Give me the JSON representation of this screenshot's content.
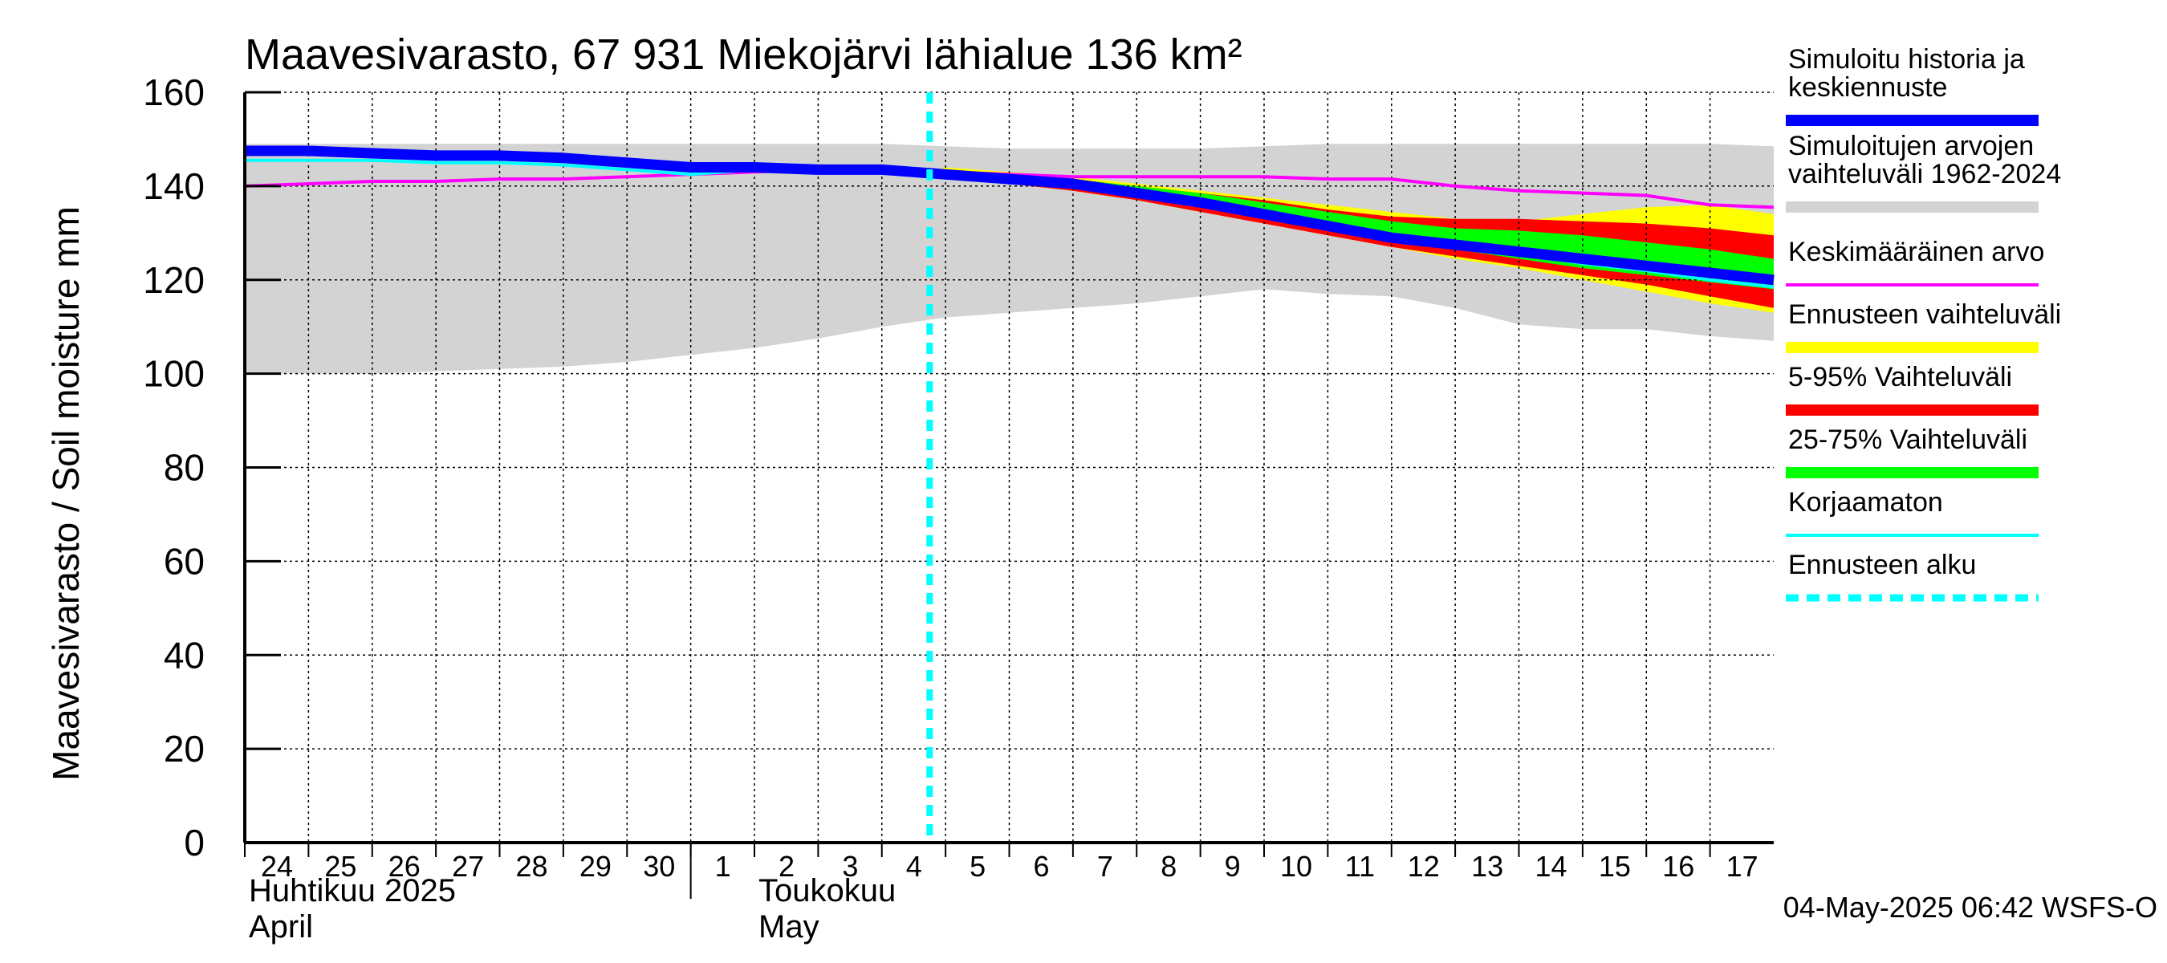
{
  "chart_data": {
    "type": "area",
    "title": "Maavesivarasto, 67 931 Miekojärvi lähialue 136 km²",
    "ylabel": "Maavesivarasto / Soil moisture   mm",
    "ylim": [
      0,
      160
    ],
    "yticks": [
      0,
      20,
      40,
      60,
      80,
      100,
      120,
      140,
      160
    ],
    "x_start_day": 24,
    "x_end_day": 48,
    "x_days": [
      24,
      25,
      26,
      27,
      28,
      29,
      30,
      31,
      32,
      33,
      34,
      35,
      36,
      37,
      38,
      39,
      40,
      41,
      42,
      43,
      44,
      45,
      46,
      47
    ],
    "day_labels": [
      "24",
      "25",
      "26",
      "27",
      "28",
      "29",
      "30",
      "1",
      "2",
      "3",
      "4",
      "5",
      "6",
      "7",
      "8",
      "9",
      "10",
      "11",
      "12",
      "13",
      "14",
      "15",
      "16",
      "17"
    ],
    "month_labels": [
      {
        "line1": "Huhtikuu  2025",
        "line2": "April",
        "day": 24
      },
      {
        "line1": "Toukokuu",
        "line2": "May",
        "day": 32
      }
    ],
    "month_separator_day": 31,
    "forecast_start_day": 34.75,
    "grid": true,
    "legend_position": "right",
    "legend": [
      {
        "label": "Simuloitu historia ja keskiennuste",
        "lines": [
          "Simuloitu historia ja",
          "keskiennuste"
        ],
        "color": "#0000ff",
        "style": "thick"
      },
      {
        "label": "Simuloitujen arvojen vaihteluväli 1962-2024",
        "lines": [
          "Simuloitujen arvojen",
          "vaihteluväli 1962-2024"
        ],
        "color": "#d3d3d3",
        "style": "thick"
      },
      {
        "label": "Keskimääräinen arvo",
        "lines": [
          "Keskimääräinen arvo"
        ],
        "color": "#ff00ff",
        "style": "thin"
      },
      {
        "label": "Ennusteen vaihteluväli",
        "lines": [
          "Ennusteen vaihteluväli"
        ],
        "color": "#ffff00",
        "style": "thick"
      },
      {
        "label": "5-95% Vaihteluväli",
        "lines": [
          "5-95% Vaihteluväli"
        ],
        "color": "#ff0000",
        "style": "thick"
      },
      {
        "label": "25-75% Vaihteluväli",
        "lines": [
          "25-75% Vaihteluväli"
        ],
        "color": "#00ff00",
        "style": "thick"
      },
      {
        "label": "Korjaamaton",
        "lines": [
          "Korjaamaton"
        ],
        "color": "#00ffff",
        "style": "thin"
      },
      {
        "label": "Ennusteen alku",
        "lines": [
          "Ennusteen alku"
        ],
        "color": "#00ffff",
        "style": "dashed"
      }
    ],
    "series": [
      {
        "name": "Simuloitujen arvojen vaihteluväli 1962-2024",
        "kind": "band",
        "color": "#d3d3d3",
        "x": [
          24,
          25,
          26,
          27,
          28,
          29,
          30,
          31,
          32,
          33,
          34,
          35,
          36,
          37,
          38,
          39,
          40,
          41,
          42,
          43,
          44,
          45,
          46,
          47,
          48
        ],
        "low": [
          100,
          100,
          100,
          100.5,
          101,
          101.5,
          102.5,
          104,
          105.5,
          107.5,
          110,
          112,
          113,
          114,
          115,
          116.5,
          118,
          117,
          116.5,
          114,
          110.5,
          109.5,
          109.5,
          108,
          107
        ],
        "high": [
          149,
          149,
          149,
          149,
          149,
          149,
          149,
          149,
          149,
          149,
          149,
          148.5,
          148,
          148,
          148,
          148,
          148.5,
          149,
          149,
          149,
          149,
          149,
          149,
          149,
          148.5
        ]
      },
      {
        "name": "Ennusteen vaihteluväli",
        "kind": "band",
        "color": "#ffff00",
        "x": [
          34.75,
          35,
          36,
          37,
          38,
          39,
          40,
          41,
          42,
          43,
          44,
          45,
          46,
          47,
          48
        ],
        "low": [
          143,
          142,
          140.5,
          139,
          137,
          134.5,
          132,
          129.5,
          127,
          124.5,
          122.5,
          120,
          117.5,
          115,
          113
        ],
        "high": [
          143,
          144,
          143,
          142,
          140.5,
          139,
          137.5,
          136,
          134.5,
          133,
          132.5,
          134,
          135.5,
          136,
          134
        ]
      },
      {
        "name": "5-95% Vaihteluväli",
        "kind": "band",
        "color": "#ff0000",
        "x": [
          34.75,
          35,
          36,
          37,
          38,
          39,
          40,
          41,
          42,
          43,
          44,
          45,
          46,
          47,
          48
        ],
        "low": [
          143,
          142,
          140.5,
          139,
          137,
          134.5,
          132,
          129.5,
          127,
          125,
          123,
          121,
          119,
          116.5,
          114
        ],
        "high": [
          143,
          143.5,
          142.5,
          141.5,
          140,
          138.5,
          137,
          135,
          133.5,
          133,
          133,
          132.5,
          132,
          131,
          129.5
        ]
      },
      {
        "name": "25-75% Vaihteluväli",
        "kind": "band",
        "color": "#00ff00",
        "x": [
          34.75,
          35,
          36,
          37,
          38,
          39,
          40,
          41,
          42,
          43,
          44,
          45,
          46,
          47,
          48
        ],
        "low": [
          143,
          142.5,
          141,
          140,
          138,
          136,
          133.5,
          131,
          128.5,
          126.5,
          124.5,
          122.5,
          121,
          119.5,
          118
        ],
        "high": [
          143,
          143,
          142,
          141.5,
          140,
          138.5,
          136.5,
          134.5,
          132.5,
          131,
          130.5,
          129.5,
          128,
          126.5,
          124.5
        ]
      },
      {
        "name": "Keskimääräinen arvo",
        "kind": "line",
        "color": "#ff00ff",
        "x": [
          24,
          25,
          26,
          27,
          28,
          29,
          30,
          31,
          32,
          33,
          34,
          35,
          36,
          37,
          38,
          39,
          40,
          41,
          42,
          43,
          44,
          45,
          46,
          47,
          48
        ],
        "values": [
          140,
          140.5,
          141,
          141,
          141.5,
          141.5,
          142,
          142.5,
          143,
          143.5,
          143.5,
          143,
          142.5,
          142,
          142,
          142,
          142,
          141.5,
          141.5,
          140,
          139,
          138.5,
          138,
          136,
          135.5
        ]
      },
      {
        "name": "Korjaamaton",
        "kind": "line",
        "color": "#00ffff",
        "x": [
          24,
          25,
          26,
          27,
          28,
          29,
          30,
          31,
          32,
          33,
          34,
          35,
          36,
          37,
          38,
          39,
          40,
          41,
          42,
          43,
          44,
          45,
          46,
          47,
          48
        ],
        "values": [
          145.5,
          145.5,
          145.5,
          145,
          145,
          144.5,
          143.5,
          142.5,
          143.5,
          144,
          143.5,
          142.5,
          141.5,
          140.5,
          138.5,
          136.5,
          134,
          131.5,
          129,
          127,
          125.5,
          123.5,
          122,
          120,
          118.5
        ]
      },
      {
        "name": "Simuloitu historia ja keskiennuste",
        "kind": "line",
        "color": "#0000ff",
        "x": [
          24,
          25,
          26,
          27,
          28,
          29,
          30,
          31,
          32,
          33,
          34,
          35,
          36,
          37,
          38,
          39,
          40,
          41,
          42,
          43,
          44,
          45,
          46,
          47,
          48
        ],
        "values": [
          147.5,
          147.5,
          147,
          146.5,
          146.5,
          146,
          145,
          144,
          144,
          143.5,
          143.5,
          142.5,
          141.5,
          140.5,
          138.5,
          136.5,
          134,
          131.5,
          129,
          127.5,
          126,
          124.5,
          123,
          121.5,
          120
        ]
      }
    ]
  },
  "footer": {
    "timestamp": "04-May-2025 06:42 WSFS-O"
  }
}
